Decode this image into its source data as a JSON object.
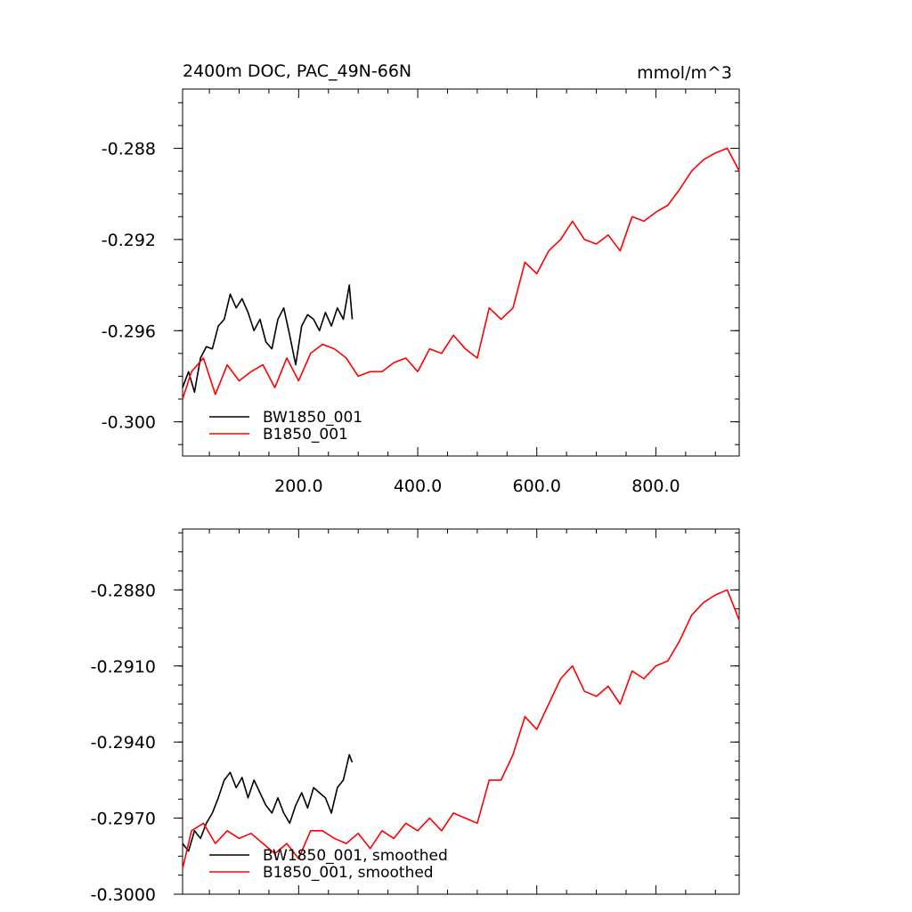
{
  "chart_data": [
    {
      "type": "line",
      "title_left": "2400m DOC, PAC_49N-66N",
      "title_right": "mmol/m^3",
      "xlabel": "",
      "ylabel": "",
      "xlim": [
        5,
        940
      ],
      "ylim": [
        -0.3015,
        -0.2854
      ],
      "xticks": [
        {
          "value": 200,
          "label": "200.0"
        },
        {
          "value": 400,
          "label": "400.0"
        },
        {
          "value": 600,
          "label": "600.0"
        },
        {
          "value": 800,
          "label": "800.0"
        }
      ],
      "yticks": [
        {
          "value": -0.288,
          "label": "-0.288"
        },
        {
          "value": -0.292,
          "label": "-0.292"
        },
        {
          "value": -0.296,
          "label": "-0.296"
        },
        {
          "value": -0.3,
          "label": "-0.300"
        }
      ],
      "legend_position": "bottom-left",
      "series": [
        {
          "name": "BW1850_001",
          "color": "#000000",
          "x": [
            5,
            15,
            25,
            35,
            45,
            55,
            65,
            75,
            85,
            95,
            105,
            115,
            125,
            135,
            145,
            155,
            165,
            175,
            185,
            195,
            205,
            215,
            225,
            235,
            245,
            255,
            265,
            275,
            285,
            290
          ],
          "y": [
            -0.2985,
            -0.2978,
            -0.2987,
            -0.2972,
            -0.2967,
            -0.2968,
            -0.2958,
            -0.2955,
            -0.2944,
            -0.295,
            -0.2946,
            -0.2952,
            -0.296,
            -0.2955,
            -0.2965,
            -0.2968,
            -0.2955,
            -0.295,
            -0.2962,
            -0.2975,
            -0.2958,
            -0.2953,
            -0.2955,
            -0.296,
            -0.2952,
            -0.2958,
            -0.295,
            -0.2955,
            -0.294,
            -0.2955
          ]
        },
        {
          "name": "B1850_001",
          "color": "#ff0000",
          "x": [
            5,
            20,
            40,
            60,
            80,
            100,
            120,
            140,
            160,
            180,
            200,
            220,
            240,
            260,
            280,
            300,
            320,
            340,
            360,
            380,
            400,
            420,
            440,
            460,
            480,
            500,
            520,
            540,
            560,
            580,
            600,
            620,
            640,
            660,
            680,
            700,
            720,
            740,
            760,
            780,
            800,
            820,
            840,
            860,
            880,
            900,
            920,
            940
          ],
          "y": [
            -0.299,
            -0.2978,
            -0.2972,
            -0.2988,
            -0.2975,
            -0.2982,
            -0.2978,
            -0.2975,
            -0.2985,
            -0.2972,
            -0.2982,
            -0.297,
            -0.2966,
            -0.2968,
            -0.2972,
            -0.298,
            -0.2978,
            -0.2978,
            -0.2974,
            -0.2972,
            -0.2978,
            -0.2968,
            -0.297,
            -0.2962,
            -0.2968,
            -0.2972,
            -0.295,
            -0.2955,
            -0.295,
            -0.293,
            -0.2935,
            -0.2925,
            -0.292,
            -0.2912,
            -0.292,
            -0.2922,
            -0.2918,
            -0.2925,
            -0.291,
            -0.2912,
            -0.2908,
            -0.2905,
            -0.2898,
            -0.289,
            -0.2885,
            -0.2882,
            -0.288,
            -0.289
          ]
        }
      ]
    },
    {
      "type": "line",
      "xlabel": "",
      "ylabel": "",
      "xlim": [
        5,
        940
      ],
      "ylim": [
        -0.3,
        -0.2856
      ],
      "xticks": [
        {
          "value": 200,
          "label": ""
        },
        {
          "value": 400,
          "label": ""
        },
        {
          "value": 600,
          "label": ""
        },
        {
          "value": 800,
          "label": ""
        }
      ],
      "yticks": [
        {
          "value": -0.288,
          "label": "-0.2880"
        },
        {
          "value": -0.291,
          "label": "-0.2910"
        },
        {
          "value": -0.294,
          "label": "-0.2940"
        },
        {
          "value": -0.297,
          "label": "-0.2970"
        },
        {
          "value": -0.3,
          "label": "-0.3000"
        }
      ],
      "legend_position": "bottom-left",
      "series": [
        {
          "name": "BW1850_001, smoothed",
          "color": "#000000",
          "x": [
            5,
            15,
            25,
            35,
            45,
            55,
            65,
            75,
            85,
            95,
            105,
            115,
            125,
            135,
            145,
            155,
            165,
            175,
            185,
            195,
            205,
            215,
            225,
            235,
            245,
            255,
            265,
            275,
            285,
            290
          ],
          "y": [
            -0.298,
            -0.2983,
            -0.2975,
            -0.2978,
            -0.2972,
            -0.2968,
            -0.2962,
            -0.2955,
            -0.2952,
            -0.2958,
            -0.2954,
            -0.2962,
            -0.2955,
            -0.296,
            -0.2965,
            -0.2968,
            -0.2962,
            -0.2968,
            -0.2972,
            -0.2965,
            -0.296,
            -0.2966,
            -0.2958,
            -0.296,
            -0.2962,
            -0.2968,
            -0.2958,
            -0.2955,
            -0.2945,
            -0.2948
          ]
        },
        {
          "name": "B1850_001, smoothed",
          "color": "#ff0000",
          "x": [
            5,
            20,
            40,
            60,
            80,
            100,
            120,
            140,
            160,
            180,
            200,
            220,
            240,
            260,
            280,
            300,
            320,
            340,
            360,
            380,
            400,
            420,
            440,
            460,
            480,
            500,
            520,
            540,
            560,
            580,
            600,
            620,
            640,
            660,
            680,
            700,
            720,
            740,
            760,
            780,
            800,
            820,
            840,
            860,
            880,
            900,
            920,
            940
          ],
          "y": [
            -0.299,
            -0.2975,
            -0.2972,
            -0.298,
            -0.2975,
            -0.2978,
            -0.2976,
            -0.298,
            -0.2984,
            -0.298,
            -0.2986,
            -0.2975,
            -0.2975,
            -0.2978,
            -0.298,
            -0.2976,
            -0.2982,
            -0.2975,
            -0.2978,
            -0.2972,
            -0.2975,
            -0.297,
            -0.2975,
            -0.2968,
            -0.297,
            -0.2972,
            -0.2955,
            -0.2955,
            -0.2945,
            -0.293,
            -0.2935,
            -0.2925,
            -0.2915,
            -0.291,
            -0.292,
            -0.2922,
            -0.2918,
            -0.2925,
            -0.2912,
            -0.2915,
            -0.291,
            -0.2908,
            -0.29,
            -0.289,
            -0.2885,
            -0.2882,
            -0.288,
            -0.2892
          ]
        }
      ]
    }
  ]
}
